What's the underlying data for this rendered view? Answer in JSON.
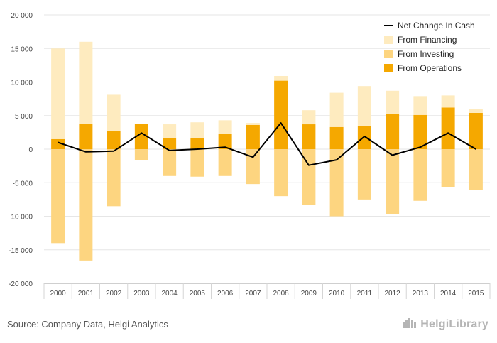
{
  "chart_data": {
    "type": "bar",
    "title": "",
    "xlabel": "",
    "ylabel": "",
    "categories": [
      "2000",
      "2001",
      "2002",
      "2003",
      "2004",
      "2005",
      "2006",
      "2007",
      "2008",
      "2009",
      "2010",
      "2011",
      "2012",
      "2013",
      "2014",
      "2015"
    ],
    "ylim": [
      -20000,
      20000
    ],
    "yticks": [
      20000,
      15000,
      10000,
      5000,
      0,
      -5000,
      -10000,
      -15000,
      -20000
    ],
    "ytick_labels": [
      "20 000",
      "15 000",
      "10 000",
      "5 000",
      "0",
      "-5 000",
      "-10 000",
      "-15 000",
      "-20 000"
    ],
    "grid": true,
    "legend_position": "top-right",
    "series": [
      {
        "name": "From Operations",
        "kind": "bar",
        "color": "#f5a800",
        "values": [
          1500,
          3800,
          2700,
          3800,
          1600,
          1600,
          2300,
          3600,
          10200,
          3700,
          3300,
          3500,
          5300,
          5100,
          6200,
          5400
        ]
      },
      {
        "name": "From Investing",
        "kind": "bar",
        "color": "#fdd580",
        "values": [
          -14000,
          -16600,
          -8500,
          -1600,
          -4000,
          -4100,
          -4000,
          -5200,
          -7000,
          -8300,
          -10000,
          -7500,
          -9700,
          -7700,
          -5700,
          -6100
        ]
      },
      {
        "name": "From Financing",
        "kind": "bar",
        "color": "#feebbf",
        "values": [
          13500,
          12200,
          5400,
          0,
          2100,
          2400,
          2000,
          300,
          700,
          2100,
          5100,
          5900,
          3400,
          2800,
          1800,
          600
        ]
      },
      {
        "name": "Net Change In Cash",
        "kind": "line",
        "color": "#000000",
        "values": [
          1000,
          -400,
          -300,
          2400,
          -200,
          0,
          300,
          -1200,
          3900,
          -2400,
          -1600,
          1900,
          -900,
          300,
          2400,
          0
        ]
      }
    ]
  },
  "legend": {
    "items": [
      {
        "label": "Net Change In Cash",
        "type": "line",
        "color": "#000000"
      },
      {
        "label": "From Financing",
        "type": "box",
        "color": "#feebbf"
      },
      {
        "label": "From Investing",
        "type": "box",
        "color": "#fdd580"
      },
      {
        "label": "From Operations",
        "type": "box",
        "color": "#f5a800"
      }
    ]
  },
  "footer": {
    "source": "Source: Company Data, Helgi Analytics",
    "logo": "HelgiLibrary",
    "logo_icon": "helgi-library-logo-icon"
  }
}
